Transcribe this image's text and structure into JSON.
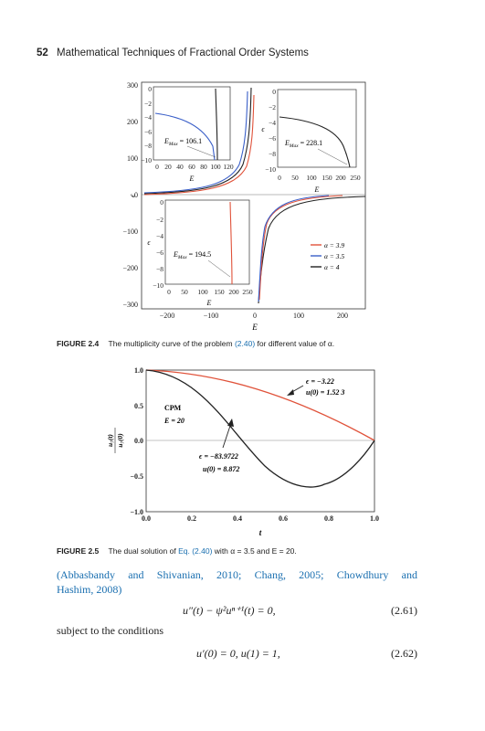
{
  "header": {
    "page_number": "52",
    "running_title": "Mathematical Techniques of Fractional Order Systems"
  },
  "figure24": {
    "caption_label": "FIGURE 2.4",
    "caption_text": "The multiplicity curve of the problem",
    "caption_ref": "(2.40)",
    "caption_tail": "for different value of α.",
    "main_xlabel": "E",
    "main_ylabel": "ϵ",
    "main_xticks": [
      "−200",
      "−100",
      "0",
      "100",
      "200"
    ],
    "main_yticks": [
      "300",
      "200",
      "100",
      "0",
      "−100",
      "−200",
      "−300"
    ],
    "legend": [
      "α = 3.9",
      "α = 3.5",
      "α = 4"
    ],
    "inset1": {
      "yticks": [
        "0",
        "−2",
        "−4",
        "−6",
        "−8",
        "−10"
      ],
      "xticks": [
        "0",
        "20",
        "40",
        "60",
        "80",
        "100",
        "120"
      ],
      "xlabel": "E",
      "annot": "E",
      "annot_sub": "Max",
      "annot_val": " = 106.1"
    },
    "inset2": {
      "yticks": [
        "0",
        "−2",
        "−4",
        "−6",
        "−8",
        "−10"
      ],
      "xticks": [
        "0",
        "50",
        "100",
        "150",
        "200",
        "250"
      ],
      "xlabel": "E",
      "ylabel": "ϵ",
      "annot": "E",
      "annot_sub": "Max",
      "annot_val": " = 228.1"
    },
    "inset3": {
      "yticks": [
        "0",
        "−2",
        "−4",
        "−6",
        "−8",
        "−10"
      ],
      "xticks": [
        "0",
        "50",
        "100",
        "150",
        "200",
        "250"
      ],
      "xlabel": "E",
      "ylabel": "ϵ",
      "annot": "E",
      "annot_sub": "Max",
      "annot_val": " = 194.5"
    },
    "colors": {
      "alpha39": "#e0523a",
      "alpha35": "#3a5fc8",
      "alpha4": "#222222"
    }
  },
  "figure25": {
    "caption_label": "FIGURE 2.5",
    "caption_text": "The dual solution of",
    "caption_ref": "Eq. (2.40)",
    "caption_tail": "with α = 3.5 and E = 20.",
    "xlabel": "t",
    "ylabel_num": "u₇(t)",
    "ylabel_den": "u₇(0)",
    "xticks": [
      "0.0",
      "0.2",
      "0.4",
      "0.6",
      "0.8",
      "1.0"
    ],
    "yticks": [
      "1.0",
      "0.5",
      "0.0",
      "−0.5",
      "−1.0"
    ],
    "method_label": "CPM",
    "param_label": "E = 20",
    "sol1_eps": "ϵ = −3.22",
    "sol1_u0": "u(0) = 1.52 3",
    "sol2_eps": "ϵ = −83.9722",
    "sol2_u0": "u(0) = 8.872",
    "colors": {
      "upper": "#e0523a",
      "lower": "#222222"
    }
  },
  "text": {
    "citation_line1": "(Abbasbandy and Shivanian, 2010; Chang, 2005; Chowdhury and",
    "citation_line2": "Hashim, 2008)",
    "eq61": "u″(t) − ψ²uⁿ⁺¹(t) = 0,",
    "eq61_num": "(2.61)",
    "subject": "subject to the conditions",
    "eq62": "u′(0) = 0, u(1) = 1,",
    "eq62_num": "(2.62)"
  }
}
